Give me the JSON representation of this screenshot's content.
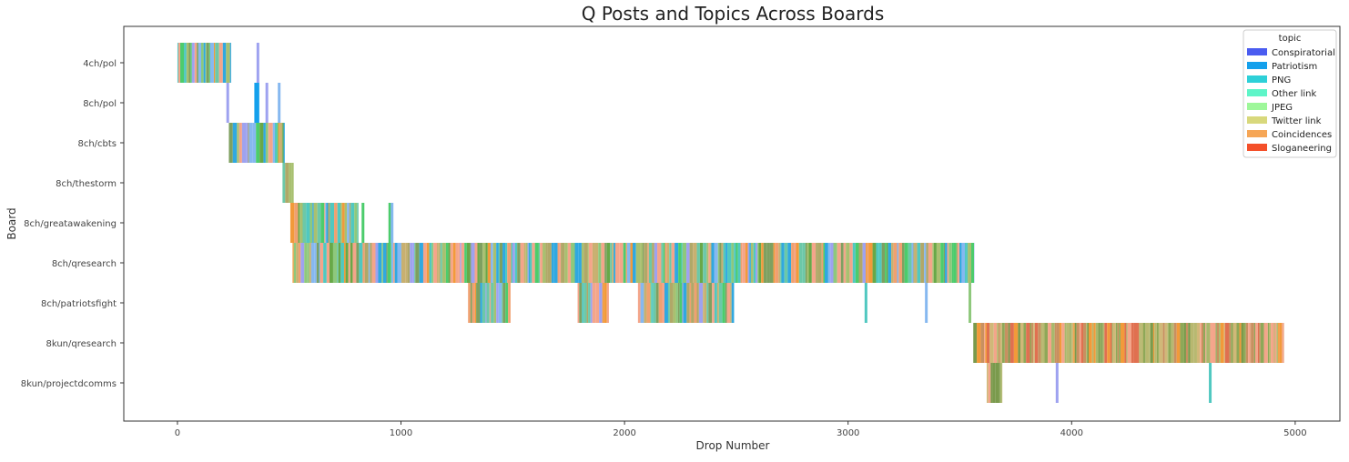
{
  "chart_data": {
    "type": "strip",
    "title": "Q Posts and Topics Across Boards",
    "xlabel": "Drop Number",
    "ylabel": "Board",
    "xlim": [
      -240,
      5200
    ],
    "xticks": [
      0,
      1000,
      2000,
      3000,
      4000,
      5000
    ],
    "grid": false,
    "legend": {
      "title": "topic",
      "placement": "top-right",
      "entries": [
        {
          "name": "Conspiratorial",
          "color": "#4a5cf0"
        },
        {
          "name": "Patriotism",
          "color": "#14a0ec"
        },
        {
          "name": "PNG",
          "color": "#2ed0d8"
        },
        {
          "name": "Other link",
          "color": "#5ef5c8"
        },
        {
          "name": "JPEG",
          "color": "#9ef79a"
        },
        {
          "name": "Twitter link",
          "color": "#d8d87c"
        },
        {
          "name": "Coincidences",
          "color": "#f6a656"
        },
        {
          "name": "Sloganeering",
          "color": "#f4502a"
        }
      ]
    },
    "boards": [
      {
        "name": "4ch/pol",
        "spans": [
          [
            0,
            240
          ]
        ],
        "marks": [
          [
            360,
            "#9ea2f0"
          ]
        ]
      },
      {
        "name": "8ch/pol",
        "spans": [],
        "marks": [
          [
            225,
            "#9ea2f0"
          ],
          [
            350,
            "#14a0ec"
          ],
          [
            360,
            "#14a0ec"
          ],
          [
            400,
            "#9ea2f0"
          ],
          [
            455,
            "#86b8f0"
          ]
        ]
      },
      {
        "name": "8ch/cbts",
        "spans": [
          [
            230,
            480
          ]
        ],
        "marks": []
      },
      {
        "name": "8ch/thestorm",
        "spans": [
          [
            470,
            520
          ]
        ],
        "marks": []
      },
      {
        "name": "8ch/greatawakening",
        "spans": [
          [
            505,
            810
          ]
        ],
        "marks": [
          [
            830,
            "#4ccc6c"
          ],
          [
            950,
            "#4ccc6c"
          ],
          [
            960,
            "#86b8f0"
          ]
        ]
      },
      {
        "name": "8ch/qresearch",
        "spans": [
          [
            515,
            3565
          ]
        ],
        "marks": []
      },
      {
        "name": "8ch/patriotsfight",
        "spans": [
          [
            1300,
            1490
          ],
          [
            1790,
            1930
          ],
          [
            2060,
            2490
          ]
        ],
        "marks": [
          [
            3080,
            "#50c8c0"
          ],
          [
            3350,
            "#86b8f0"
          ],
          [
            3545,
            "#8ec87c"
          ]
        ]
      },
      {
        "name": "8kun/qresearch",
        "spans": [
          [
            3560,
            4950
          ]
        ],
        "marks": []
      },
      {
        "name": "8kun/projectdcomms",
        "spans": [
          [
            3620,
            3690
          ]
        ],
        "marks": [
          [
            3935,
            "#9ea2f0"
          ],
          [
            4620,
            "#50c8c0"
          ]
        ]
      }
    ]
  }
}
